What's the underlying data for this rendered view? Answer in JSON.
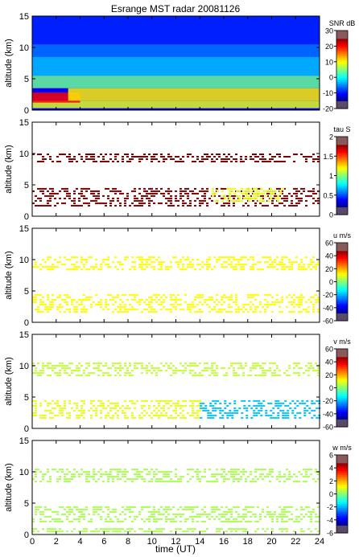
{
  "chart_data": {
    "title": "Esrange MST radar 20081126",
    "xlabel": "time (UT)",
    "xlim": [
      0,
      24
    ],
    "xticks": [
      "0",
      "2",
      "4",
      "6",
      "8",
      "10",
      "12",
      "14",
      "16",
      "18",
      "20",
      "22",
      "24"
    ],
    "panels": [
      {
        "type": "heatmap",
        "ylabel": "altitude (km)",
        "ylim": [
          0,
          15
        ],
        "yticks": [
          "0",
          "5",
          "10",
          "15"
        ],
        "colorbar": {
          "label": "SNR dB",
          "range": [
            -20,
            30
          ],
          "ticks": [
            "-20",
            "-10",
            "0",
            "10",
            "20",
            "30"
          ]
        },
        "layers": [
          {
            "alt": [
              0.3,
              1.5
            ],
            "x": [
              0,
              24
            ],
            "value": 10
          },
          {
            "alt": [
              1.2,
              2.8
            ],
            "x": [
              0,
              4
            ],
            "value": 24
          },
          {
            "alt": [
              1.5,
              3.5
            ],
            "x": [
              3,
              24
            ],
            "value": 12
          },
          {
            "alt": [
              3.5,
              5.5
            ],
            "x": [
              0,
              24
            ],
            "value": 4
          },
          {
            "alt": [
              5.5,
              8.5
            ],
            "x": [
              0,
              24
            ],
            "value": -4
          },
          {
            "alt": [
              8.5,
              10.5
            ],
            "x": [
              0,
              24
            ],
            "value": -8
          },
          {
            "alt": [
              10.5,
              15
            ],
            "x": [
              0,
              24
            ],
            "value": -12
          }
        ]
      },
      {
        "type": "heatmap",
        "ylabel": "altitude (km)",
        "ylim": [
          0,
          15
        ],
        "yticks": [
          "0",
          "5",
          "10",
          "15"
        ],
        "colorbar": {
          "label": "tau S",
          "range": [
            0,
            2
          ],
          "ticks": [
            "0",
            "0.5",
            "1",
            "1.5",
            "2"
          ]
        },
        "layers": [
          {
            "alt": [
              1.5,
              4.5
            ],
            "x": [
              0,
              24
            ],
            "value": 2
          },
          {
            "alt": [
              8.5,
              10.0
            ],
            "x": [
              0,
              24
            ],
            "value": 2
          },
          {
            "alt": [
              2.5,
              4.5
            ],
            "x": [
              15,
              21
            ],
            "value": 1.2
          }
        ]
      },
      {
        "type": "heatmap",
        "ylabel": "altitude (km)",
        "ylim": [
          0,
          15
        ],
        "yticks": [
          "0",
          "5",
          "10",
          "15"
        ],
        "colorbar": {
          "label": "u m/s",
          "range": [
            -60,
            60
          ],
          "ticks": [
            "-60",
            "-40",
            "-20",
            "0",
            "20",
            "40",
            "60"
          ]
        },
        "layers": [
          {
            "alt": [
              1.5,
              4.5
            ],
            "x": [
              0,
              24
            ],
            "value": 15
          },
          {
            "alt": [
              8.5,
              10.5
            ],
            "x": [
              0,
              24
            ],
            "value": 15
          }
        ]
      },
      {
        "type": "heatmap",
        "ylabel": "altitude (km)",
        "ylim": [
          0,
          15
        ],
        "yticks": [
          "0",
          "5",
          "10",
          "15"
        ],
        "colorbar": {
          "label": "v m/s",
          "range": [
            -60,
            60
          ],
          "ticks": [
            "-60",
            "-40",
            "-20",
            "0",
            "20",
            "40",
            "60"
          ]
        },
        "layers": [
          {
            "alt": [
              1.5,
              4.5
            ],
            "x": [
              0,
              14
            ],
            "value": 12
          },
          {
            "alt": [
              1.5,
              4.5
            ],
            "x": [
              14,
              24
            ],
            "value": -22
          },
          {
            "alt": [
              8.5,
              10.5
            ],
            "x": [
              0,
              24
            ],
            "value": 8
          }
        ]
      },
      {
        "type": "heatmap",
        "ylabel": "altitude (km)",
        "ylim": [
          0,
          15
        ],
        "yticks": [
          "0",
          "5",
          "10",
          "15"
        ],
        "colorbar": {
          "label": "w m/s",
          "range": [
            -6,
            6
          ],
          "ticks": [
            "-6",
            "-4",
            "-2",
            "0",
            "2",
            "4",
            "6"
          ]
        },
        "layers": [
          {
            "alt": [
              2.0,
              4.5
            ],
            "x": [
              0,
              24
            ],
            "value": 0.5
          },
          {
            "alt": [
              8.5,
              10.5
            ],
            "x": [
              0,
              24
            ],
            "value": 0.5
          },
          {
            "alt": [
              0.3,
              1.0
            ],
            "x": [
              0,
              24
            ],
            "value": 0.5
          }
        ]
      }
    ]
  }
}
